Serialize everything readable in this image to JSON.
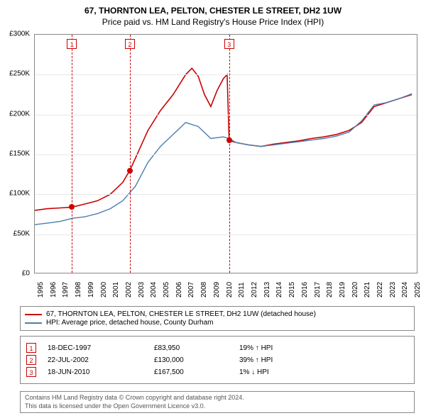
{
  "title": {
    "line1": "67, THORNTON LEA, PELTON, CHESTER LE STREET, DH2 1UW",
    "line2": "Price paid vs. HM Land Registry's House Price Index (HPI)"
  },
  "chart": {
    "type": "line",
    "background_color": "#ffffff",
    "grid_color": "#e8e8e8",
    "border_color": "#888888",
    "font_size_ticks": 10,
    "x_domain": [
      1995,
      2025.5
    ],
    "y_domain": [
      0,
      300000
    ],
    "y_ticks": [
      {
        "v": 0,
        "label": "£0"
      },
      {
        "v": 50000,
        "label": "£50K"
      },
      {
        "v": 100000,
        "label": "£100K"
      },
      {
        "v": 150000,
        "label": "£150K"
      },
      {
        "v": 200000,
        "label": "£200K"
      },
      {
        "v": 250000,
        "label": "£250K"
      },
      {
        "v": 300000,
        "label": "£300K"
      }
    ],
    "x_ticks": [
      1995,
      1996,
      1997,
      1998,
      1999,
      2000,
      2001,
      2002,
      2003,
      2004,
      2005,
      2006,
      2007,
      2008,
      2009,
      2010,
      2011,
      2012,
      2013,
      2014,
      2015,
      2016,
      2017,
      2018,
      2019,
      2020,
      2021,
      2022,
      2023,
      2024,
      2025
    ],
    "series": [
      {
        "name": "property",
        "label": "67, THORNTON LEA, PELTON, CHESTER LE STREET, DH2 1UW (detached house)",
        "color": "#cc0000",
        "line_width": 1.6,
        "points": [
          [
            1995,
            80000
          ],
          [
            1996,
            82000
          ],
          [
            1997,
            83000
          ],
          [
            1997.96,
            83950
          ],
          [
            1999,
            88000
          ],
          [
            2000,
            92000
          ],
          [
            2001,
            100000
          ],
          [
            2002,
            115000
          ],
          [
            2002.56,
            130000
          ],
          [
            2003,
            145000
          ],
          [
            2004,
            180000
          ],
          [
            2005,
            205000
          ],
          [
            2006,
            225000
          ],
          [
            2007,
            250000
          ],
          [
            2007.5,
            258000
          ],
          [
            2008,
            248000
          ],
          [
            2008.5,
            225000
          ],
          [
            2009,
            210000
          ],
          [
            2009.5,
            230000
          ],
          [
            2010,
            245000
          ],
          [
            2010.3,
            250000
          ],
          [
            2010.46,
            167500
          ],
          [
            2011,
            165000
          ],
          [
            2012,
            162000
          ],
          [
            2013,
            160000
          ],
          [
            2014,
            163000
          ],
          [
            2015,
            165000
          ],
          [
            2016,
            167000
          ],
          [
            2017,
            170000
          ],
          [
            2018,
            172000
          ],
          [
            2019,
            175000
          ],
          [
            2020,
            180000
          ],
          [
            2021,
            190000
          ],
          [
            2022,
            210000
          ],
          [
            2023,
            215000
          ],
          [
            2024,
            220000
          ],
          [
            2025,
            225000
          ]
        ]
      },
      {
        "name": "hpi",
        "label": "HPI: Average price, detached house, County Durham",
        "color": "#4a7fb0",
        "line_width": 1.4,
        "points": [
          [
            1995,
            62000
          ],
          [
            1996,
            64000
          ],
          [
            1997,
            66000
          ],
          [
            1998,
            70000
          ],
          [
            1999,
            72000
          ],
          [
            2000,
            76000
          ],
          [
            2001,
            82000
          ],
          [
            2002,
            92000
          ],
          [
            2003,
            110000
          ],
          [
            2004,
            140000
          ],
          [
            2005,
            160000
          ],
          [
            2006,
            175000
          ],
          [
            2007,
            190000
          ],
          [
            2008,
            185000
          ],
          [
            2009,
            170000
          ],
          [
            2010,
            172000
          ],
          [
            2010.46,
            170000
          ],
          [
            2011,
            165000
          ],
          [
            2012,
            162000
          ],
          [
            2013,
            160000
          ],
          [
            2014,
            162000
          ],
          [
            2015,
            164000
          ],
          [
            2016,
            166000
          ],
          [
            2017,
            168000
          ],
          [
            2018,
            170000
          ],
          [
            2019,
            173000
          ],
          [
            2020,
            178000
          ],
          [
            2021,
            192000
          ],
          [
            2022,
            212000
          ],
          [
            2023,
            215000
          ],
          [
            2024,
            220000
          ],
          [
            2025,
            226000
          ]
        ]
      }
    ],
    "markers": [
      {
        "n": "1",
        "x": 1997.96,
        "y": 83950,
        "color": "#cc0000"
      },
      {
        "n": "2",
        "x": 2002.56,
        "y": 130000,
        "color": "#cc0000"
      },
      {
        "n": "3",
        "x": 2010.46,
        "y": 167500,
        "color": "#cc0000"
      }
    ]
  },
  "legend": {
    "items": [
      {
        "color": "#cc0000",
        "label": "67, THORNTON LEA, PELTON, CHESTER LE STREET, DH2 1UW (detached house)"
      },
      {
        "color": "#4a7fb0",
        "label": "HPI: Average price, detached house, County Durham"
      }
    ]
  },
  "transactions": [
    {
      "n": "1",
      "color": "#cc0000",
      "date": "18-DEC-1997",
      "price": "£83,950",
      "delta": "19% ↑ HPI"
    },
    {
      "n": "2",
      "color": "#cc0000",
      "date": "22-JUL-2002",
      "price": "£130,000",
      "delta": "39% ↑ HPI"
    },
    {
      "n": "3",
      "color": "#cc0000",
      "date": "18-JUN-2010",
      "price": "£167,500",
      "delta": "1% ↓ HPI"
    }
  ],
  "footer": {
    "line1": "Contains HM Land Registry data © Crown copyright and database right 2024.",
    "line2": "This data is licensed under the Open Government Licence v3.0."
  }
}
